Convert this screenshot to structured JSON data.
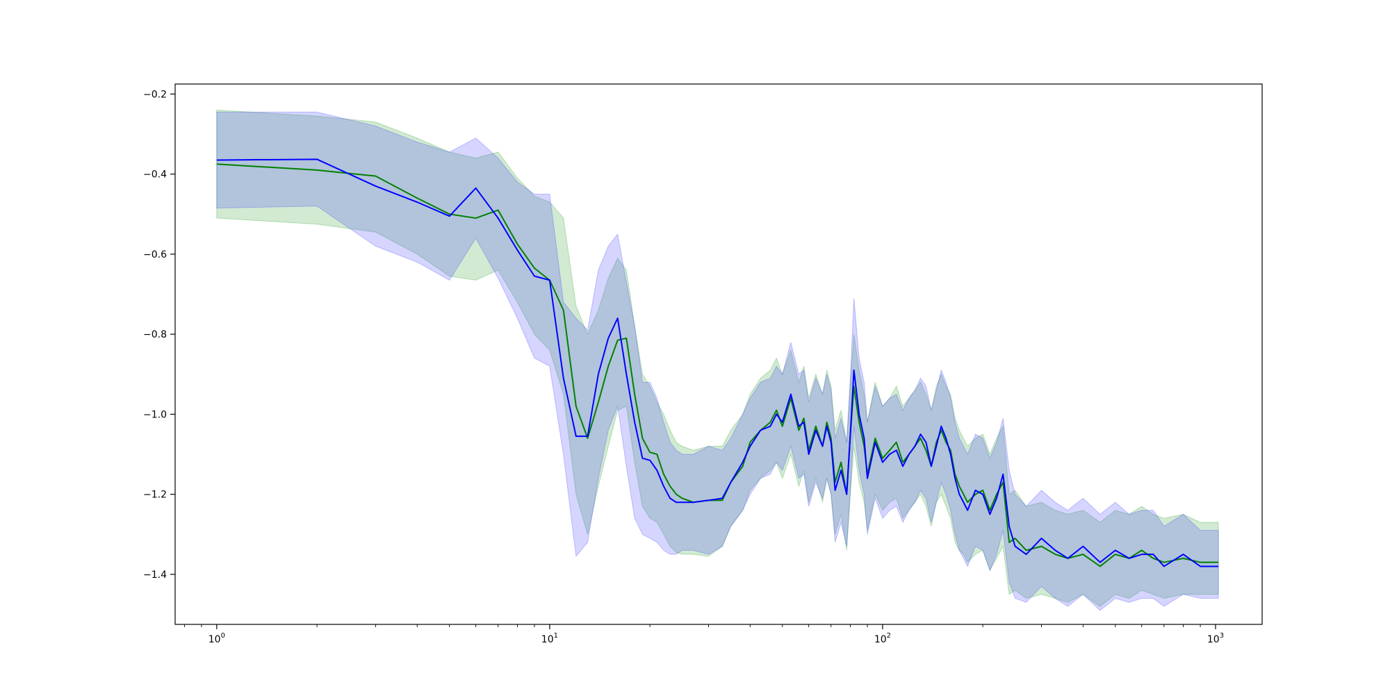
{
  "chart_data": {
    "type": "line",
    "title": "",
    "xlabel": "",
    "ylabel": "",
    "xscale": "log",
    "xlim": [
      0.75,
      1380
    ],
    "ylim": [
      -1.525,
      -0.175
    ],
    "grid": false,
    "legend": "none",
    "x_ticks": [
      {
        "value": 1,
        "base": "10",
        "exp": "0"
      },
      {
        "value": 10,
        "base": "10",
        "exp": "1"
      },
      {
        "value": 100,
        "base": "10",
        "exp": "2"
      },
      {
        "value": 1000,
        "base": "10",
        "exp": "3"
      }
    ],
    "y_ticks": [
      {
        "value": -0.2,
        "label": "−0.2"
      },
      {
        "value": -0.4,
        "label": "−0.4"
      },
      {
        "value": -0.6,
        "label": "−0.6"
      },
      {
        "value": -0.8,
        "label": "−0.8"
      },
      {
        "value": -1.0,
        "label": "−1.0"
      },
      {
        "value": -1.2,
        "label": "−1.2"
      },
      {
        "value": -1.4,
        "label": "−1.4"
      }
    ],
    "series": [
      {
        "color": "#008000",
        "band_color": "#2ca02c",
        "band_opacity": 0.22,
        "x": [
          1,
          2,
          3,
          4,
          5,
          6,
          7,
          8,
          9,
          10,
          11,
          12,
          13,
          14,
          15,
          16,
          17,
          18,
          19,
          20,
          21,
          22,
          23,
          24,
          25,
          27,
          30,
          33,
          35,
          38,
          40,
          43,
          46,
          48,
          50,
          53,
          56,
          58,
          60,
          63,
          66,
          68,
          70,
          72,
          75,
          78,
          80,
          82,
          85,
          88,
          90,
          95,
          100,
          105,
          110,
          115,
          120,
          125,
          130,
          135,
          140,
          145,
          150,
          155,
          160,
          165,
          170,
          175,
          180,
          190,
          200,
          210,
          220,
          230,
          240,
          250,
          270,
          300,
          330,
          360,
          400,
          450,
          500,
          550,
          600,
          650,
          700,
          800,
          900,
          1020
        ],
        "mean": [
          -0.375,
          -0.39,
          -0.405,
          -0.46,
          -0.5,
          -0.51,
          -0.49,
          -0.575,
          -0.635,
          -0.665,
          -0.74,
          -0.98,
          -1.06,
          -0.97,
          -0.88,
          -0.815,
          -0.81,
          -0.95,
          -1.06,
          -1.095,
          -1.1,
          -1.15,
          -1.18,
          -1.2,
          -1.21,
          -1.22,
          -1.215,
          -1.215,
          -1.17,
          -1.13,
          -1.07,
          -1.04,
          -1.02,
          -0.99,
          -1.03,
          -0.96,
          -1.04,
          -1.01,
          -1.09,
          -1.03,
          -1.08,
          -1.02,
          -1.06,
          -1.17,
          -1.12,
          -1.2,
          -1.05,
          -0.93,
          -1.02,
          -1.08,
          -1.15,
          -1.06,
          -1.11,
          -1.09,
          -1.07,
          -1.12,
          -1.1,
          -1.08,
          -1.06,
          -1.09,
          -1.13,
          -1.07,
          -1.04,
          -1.07,
          -1.09,
          -1.15,
          -1.18,
          -1.2,
          -1.22,
          -1.2,
          -1.19,
          -1.24,
          -1.2,
          -1.17,
          -1.32,
          -1.31,
          -1.34,
          -1.33,
          -1.35,
          -1.36,
          -1.35,
          -1.38,
          -1.35,
          -1.36,
          -1.34,
          -1.36,
          -1.37,
          -1.36,
          -1.37,
          -1.37
        ],
        "lower": [
          -0.51,
          -0.525,
          -0.545,
          -0.6,
          -0.655,
          -0.665,
          -0.64,
          -0.72,
          -0.8,
          -0.84,
          -0.95,
          -1.2,
          -1.3,
          -1.18,
          -1.08,
          -0.99,
          -0.98,
          -1.12,
          -1.23,
          -1.26,
          -1.27,
          -1.3,
          -1.33,
          -1.345,
          -1.35,
          -1.35,
          -1.355,
          -1.33,
          -1.28,
          -1.24,
          -1.19,
          -1.16,
          -1.14,
          -1.12,
          -1.16,
          -1.1,
          -1.18,
          -1.14,
          -1.22,
          -1.16,
          -1.22,
          -1.16,
          -1.2,
          -1.3,
          -1.25,
          -1.34,
          -1.2,
          -1.08,
          -1.17,
          -1.22,
          -1.29,
          -1.2,
          -1.24,
          -1.22,
          -1.21,
          -1.26,
          -1.24,
          -1.22,
          -1.2,
          -1.23,
          -1.28,
          -1.22,
          -1.2,
          -1.23,
          -1.26,
          -1.32,
          -1.34,
          -1.35,
          -1.37,
          -1.35,
          -1.34,
          -1.39,
          -1.36,
          -1.33,
          -1.45,
          -1.44,
          -1.46,
          -1.45,
          -1.46,
          -1.47,
          -1.45,
          -1.48,
          -1.45,
          -1.46,
          -1.44,
          -1.45,
          -1.46,
          -1.45,
          -1.45,
          -1.45
        ],
        "upper": [
          -0.24,
          -0.255,
          -0.27,
          -0.31,
          -0.345,
          -0.36,
          -0.345,
          -0.41,
          -0.455,
          -0.47,
          -0.51,
          -0.73,
          -0.8,
          -0.74,
          -0.66,
          -0.61,
          -0.64,
          -0.78,
          -0.9,
          -0.93,
          -0.97,
          -1.0,
          -1.04,
          -1.07,
          -1.08,
          -1.09,
          -1.08,
          -1.08,
          -1.04,
          -1.0,
          -0.95,
          -0.91,
          -0.89,
          -0.86,
          -0.9,
          -0.84,
          -0.92,
          -0.88,
          -0.96,
          -0.9,
          -0.95,
          -0.89,
          -0.93,
          -1.04,
          -0.99,
          -1.07,
          -0.92,
          -0.8,
          -0.89,
          -0.95,
          -1.02,
          -0.92,
          -0.98,
          -0.96,
          -0.93,
          -0.98,
          -0.96,
          -0.94,
          -0.92,
          -0.95,
          -0.99,
          -0.93,
          -0.9,
          -0.93,
          -0.95,
          -1.01,
          -1.04,
          -1.06,
          -1.08,
          -1.06,
          -1.05,
          -1.1,
          -1.06,
          -1.03,
          -1.2,
          -1.19,
          -1.23,
          -1.22,
          -1.24,
          -1.25,
          -1.24,
          -1.27,
          -1.24,
          -1.25,
          -1.23,
          -1.25,
          -1.26,
          -1.25,
          -1.27,
          -1.27
        ]
      },
      {
        "color": "#0000ff",
        "band_color": "#4040ff",
        "band_opacity": 0.22,
        "x": [
          1,
          2,
          3,
          4,
          5,
          6,
          7,
          8,
          9,
          10,
          11,
          12,
          13,
          14,
          15,
          16,
          17,
          18,
          19,
          20,
          21,
          22,
          23,
          24,
          25,
          27,
          30,
          33,
          35,
          38,
          40,
          43,
          46,
          48,
          50,
          53,
          56,
          58,
          60,
          63,
          66,
          68,
          70,
          72,
          75,
          78,
          80,
          82,
          85,
          88,
          90,
          95,
          100,
          105,
          110,
          115,
          120,
          125,
          130,
          135,
          140,
          145,
          150,
          155,
          160,
          165,
          170,
          175,
          180,
          190,
          200,
          210,
          220,
          230,
          240,
          250,
          270,
          300,
          330,
          360,
          400,
          450,
          500,
          550,
          600,
          650,
          700,
          800,
          900,
          1020
        ],
        "mean": [
          -0.365,
          -0.363,
          -0.43,
          -0.47,
          -0.505,
          -0.435,
          -0.51,
          -0.59,
          -0.655,
          -0.665,
          -0.91,
          -1.055,
          -1.055,
          -0.9,
          -0.81,
          -0.76,
          -0.9,
          -1.02,
          -1.11,
          -1.115,
          -1.14,
          -1.18,
          -1.21,
          -1.22,
          -1.22,
          -1.22,
          -1.215,
          -1.21,
          -1.17,
          -1.12,
          -1.08,
          -1.04,
          -1.03,
          -1.0,
          -1.02,
          -0.95,
          -1.03,
          -1.02,
          -1.1,
          -1.04,
          -1.08,
          -1.03,
          -1.07,
          -1.19,
          -1.14,
          -1.2,
          -1.05,
          -0.89,
          -1.0,
          -1.06,
          -1.16,
          -1.07,
          -1.12,
          -1.1,
          -1.09,
          -1.13,
          -1.1,
          -1.08,
          -1.05,
          -1.07,
          -1.13,
          -1.08,
          -1.03,
          -1.06,
          -1.1,
          -1.16,
          -1.2,
          -1.22,
          -1.24,
          -1.19,
          -1.2,
          -1.25,
          -1.21,
          -1.15,
          -1.28,
          -1.33,
          -1.35,
          -1.31,
          -1.34,
          -1.36,
          -1.33,
          -1.37,
          -1.34,
          -1.36,
          -1.35,
          -1.35,
          -1.38,
          -1.35,
          -1.38,
          -1.38
        ],
        "lower": [
          -0.485,
          -0.48,
          -0.58,
          -0.62,
          -0.665,
          -0.56,
          -0.66,
          -0.76,
          -0.86,
          -0.88,
          -1.1,
          -1.355,
          -1.32,
          -1.16,
          -1.04,
          -0.98,
          -1.13,
          -1.26,
          -1.3,
          -1.31,
          -1.32,
          -1.34,
          -1.35,
          -1.35,
          -1.34,
          -1.34,
          -1.35,
          -1.33,
          -1.28,
          -1.24,
          -1.2,
          -1.16,
          -1.15,
          -1.12,
          -1.14,
          -1.08,
          -1.16,
          -1.15,
          -1.23,
          -1.17,
          -1.21,
          -1.16,
          -1.2,
          -1.32,
          -1.27,
          -1.33,
          -1.19,
          -1.03,
          -1.14,
          -1.2,
          -1.3,
          -1.21,
          -1.26,
          -1.24,
          -1.23,
          -1.27,
          -1.24,
          -1.22,
          -1.19,
          -1.21,
          -1.27,
          -1.22,
          -1.17,
          -1.2,
          -1.24,
          -1.3,
          -1.34,
          -1.36,
          -1.38,
          -1.33,
          -1.34,
          -1.39,
          -1.35,
          -1.29,
          -1.42,
          -1.46,
          -1.47,
          -1.43,
          -1.46,
          -1.48,
          -1.45,
          -1.49,
          -1.46,
          -1.47,
          -1.46,
          -1.46,
          -1.48,
          -1.45,
          -1.46,
          -1.46
        ],
        "upper": [
          -0.245,
          -0.245,
          -0.28,
          -0.32,
          -0.345,
          -0.31,
          -0.36,
          -0.42,
          -0.45,
          -0.45,
          -0.72,
          -0.76,
          -0.79,
          -0.64,
          -0.58,
          -0.55,
          -0.67,
          -0.78,
          -0.92,
          -0.92,
          -0.96,
          -1.02,
          -1.07,
          -1.09,
          -1.1,
          -1.1,
          -1.08,
          -1.09,
          -1.06,
          -1.0,
          -0.96,
          -0.92,
          -0.91,
          -0.88,
          -0.9,
          -0.82,
          -0.9,
          -0.89,
          -0.97,
          -0.91,
          -0.95,
          -0.9,
          -0.94,
          -1.06,
          -1.01,
          -1.07,
          -0.91,
          -0.71,
          -0.86,
          -0.92,
          -1.02,
          -0.93,
          -0.98,
          -0.96,
          -0.95,
          -0.99,
          -0.96,
          -0.94,
          -0.91,
          -0.93,
          -0.99,
          -0.94,
          -0.89,
          -0.92,
          -0.96,
          -1.02,
          -1.06,
          -1.08,
          -1.1,
          -1.05,
          -1.06,
          -1.11,
          -1.07,
          -1.01,
          -1.14,
          -1.2,
          -1.23,
          -1.19,
          -1.22,
          -1.24,
          -1.21,
          -1.25,
          -1.22,
          -1.25,
          -1.24,
          -1.24,
          -1.28,
          -1.25,
          -1.29,
          -1.29
        ]
      }
    ]
  }
}
